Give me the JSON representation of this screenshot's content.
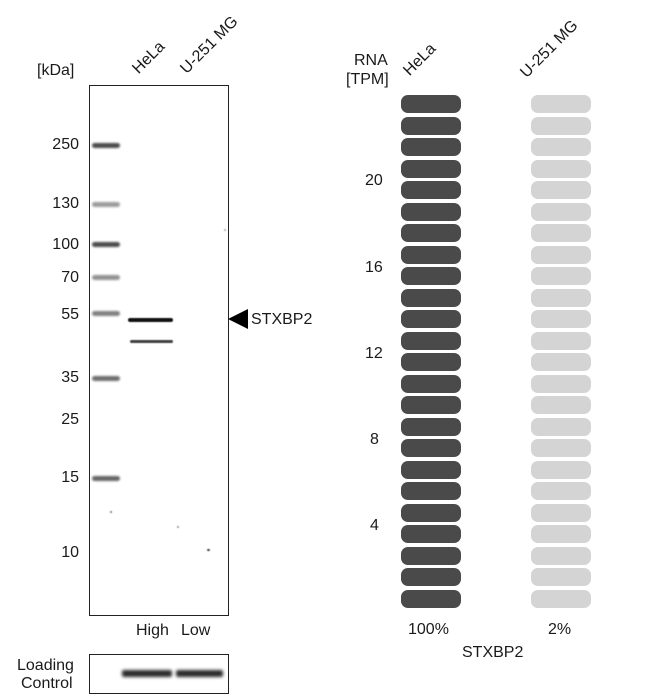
{
  "western_blot": {
    "unit_label": "[kDa]",
    "lanes": [
      "HeLa",
      "U-251 MG"
    ],
    "markers": [
      "250",
      "130",
      "100",
      "70",
      "55",
      "35",
      "25",
      "15",
      "10"
    ],
    "target": "STXBP2",
    "lane_expression": [
      "High",
      "Low"
    ],
    "loading_control_label": [
      "Loading",
      "Control"
    ]
  },
  "rna": {
    "title": [
      "RNA",
      "[TPM]"
    ],
    "cells": [
      "HeLa",
      "U-251 MG"
    ],
    "scale_labels": [
      "20",
      "16",
      "12",
      "8",
      "4"
    ],
    "segments_per_bar": 24,
    "levels": [
      1.0,
      0.02
    ],
    "percent_labels": [
      "100%",
      "2%"
    ],
    "gene": "STXBP2",
    "colors": {
      "high": "#4a4a4a",
      "low": "#d4d4d4"
    }
  }
}
